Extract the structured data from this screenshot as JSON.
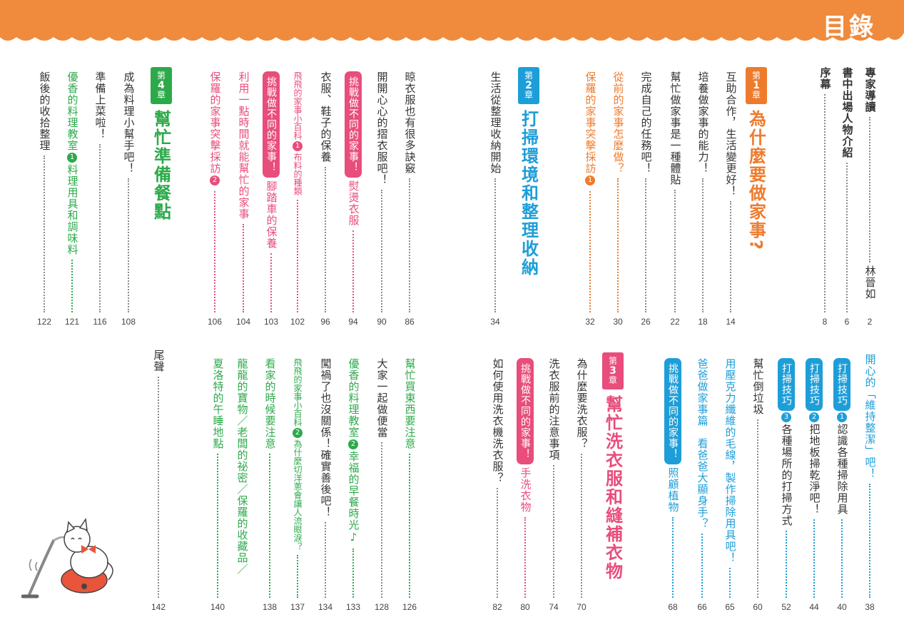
{
  "title": "目錄",
  "colors": {
    "orange": "#ee7b2d",
    "blue": "#1e9ed8",
    "green": "#2caa4a",
    "pink": "#e84d7b",
    "banner": "#f08a3c"
  },
  "chapters": {
    "ch1": {
      "label_pre": "第",
      "label_num": "1",
      "label_post": "章",
      "title": "為什麼要做家事?"
    },
    "ch2": {
      "label_pre": "第",
      "label_num": "2",
      "label_post": "章",
      "title": "打掃環境和整理收納"
    },
    "ch3": {
      "label_pre": "第",
      "label_num": "3",
      "label_post": "章",
      "title": "幫忙洗衣服和縫補衣物"
    },
    "ch4": {
      "label_pre": "第",
      "label_num": "4",
      "label_post": "章",
      "title": "幫忙準備餐點"
    }
  },
  "entries": {
    "e01": {
      "text": "專家導讀",
      "author": "林晉如",
      "page": "2"
    },
    "e02": {
      "text": "書中出場人物介紹",
      "page": "6"
    },
    "e03": {
      "text": "序幕",
      "page": "8"
    },
    "e04": {
      "text": "互助合作，生活變更好！",
      "page": "14"
    },
    "e05": {
      "text": "培養做家事的能力！",
      "page": "18"
    },
    "e06": {
      "text": "幫忙做家事是一種體貼",
      "page": "22"
    },
    "e07": {
      "text": "完成自己的任務吧！",
      "page": "26"
    },
    "e08": {
      "text": "從前的家事怎麼做？",
      "page": "30"
    },
    "e09": {
      "text": "保羅的家事突擊採訪",
      "num": "1",
      "page": "32"
    },
    "e10": {
      "text": "生活從整理收納開始",
      "page": "34"
    },
    "e11": {
      "text": "晾衣服也有很多訣竅",
      "page": "86"
    },
    "e12": {
      "text": "開開心心的摺衣服吧！",
      "page": "90"
    },
    "e13": {
      "pill": "挑戰做不同的家事！",
      "text": "熨燙衣服",
      "page": "94"
    },
    "e14": {
      "text": "衣服、鞋子的保養",
      "page": "96"
    },
    "e15": {
      "pre": "飛飛的家事小百科",
      "num": "1",
      "text": "布料的種類",
      "page": "102"
    },
    "e16": {
      "pill": "挑戰做不同的家事！",
      "text": "腳踏車的保養",
      "page": "103"
    },
    "e17": {
      "text": "利用一點時間就能幫忙的家事",
      "page": "104"
    },
    "e18": {
      "text": "保羅的家事突擊採訪",
      "num": "2",
      "page": "106"
    },
    "e19": {
      "text": "成為料理小幫手吧！",
      "page": "108"
    },
    "e20": {
      "text": "準備上菜啦！",
      "page": "116"
    },
    "e21": {
      "pre": "優香的料理教室",
      "num": "1",
      "text": "料理用具和調味料",
      "page": "121"
    },
    "e22": {
      "text": "飯後的收拾整理",
      "page": "122"
    },
    "e23": {
      "text": "開心的「維持整潔」吧！",
      "page": "38"
    },
    "e24": {
      "pre": "打掃技巧",
      "num": "1",
      "text": "認識各種掃除用具",
      "page": "40"
    },
    "e25": {
      "pre": "打掃技巧",
      "num": "2",
      "text": "把地板掃乾淨吧！",
      "page": "44"
    },
    "e26": {
      "pre": "打掃技巧",
      "num": "3",
      "text": "各種場所的打掃方式",
      "page": "52"
    },
    "e27": {
      "text": "幫忙倒垃圾",
      "page": "60"
    },
    "e28": {
      "text": "用壓克力纖維的毛線，製作掃除用具吧！",
      "page": "65"
    },
    "e29": {
      "text": "爸爸做家事篇　看爸爸大顯身手？",
      "page": "66"
    },
    "e30": {
      "pill": "挑戰做不同的家事！",
      "text": "照顧植物",
      "page": "68"
    },
    "e31": {
      "text": "為什麼要洗衣服？",
      "page": "70"
    },
    "e32": {
      "text": "洗衣服前的注意事項",
      "page": "74"
    },
    "e33": {
      "pill": "挑戰做不同的家事！",
      "text": "手洗衣物",
      "page": "80"
    },
    "e34": {
      "text": "如何使用洗衣機洗衣服？",
      "page": "82"
    },
    "e35": {
      "text": "幫忙買東西要注意",
      "page": "126"
    },
    "e36": {
      "text": "大家一起做便當",
      "page": "128"
    },
    "e37": {
      "pre": "優香的料理教室",
      "num": "2",
      "text": "幸福的早餐時光♪",
      "page": "133"
    },
    "e38": {
      "text": "闖禍了也沒關係！確實善後吧！",
      "page": "134"
    },
    "e39": {
      "pre": "飛飛的家事小百科",
      "num": "2",
      "text": "為什麼切洋蔥會讓人流眼淚？",
      "page": "137"
    },
    "e40": {
      "text": "看家的時候要注意",
      "page": "138"
    },
    "e41": {
      "text": "龍龍的寶物／老闆的祕密／保羅的收藏品／",
      "page": ""
    },
    "e42": {
      "text": "夏洛特的午睡地點",
      "page": "140"
    },
    "e43": {
      "text": "尾聲",
      "page": "142"
    }
  }
}
